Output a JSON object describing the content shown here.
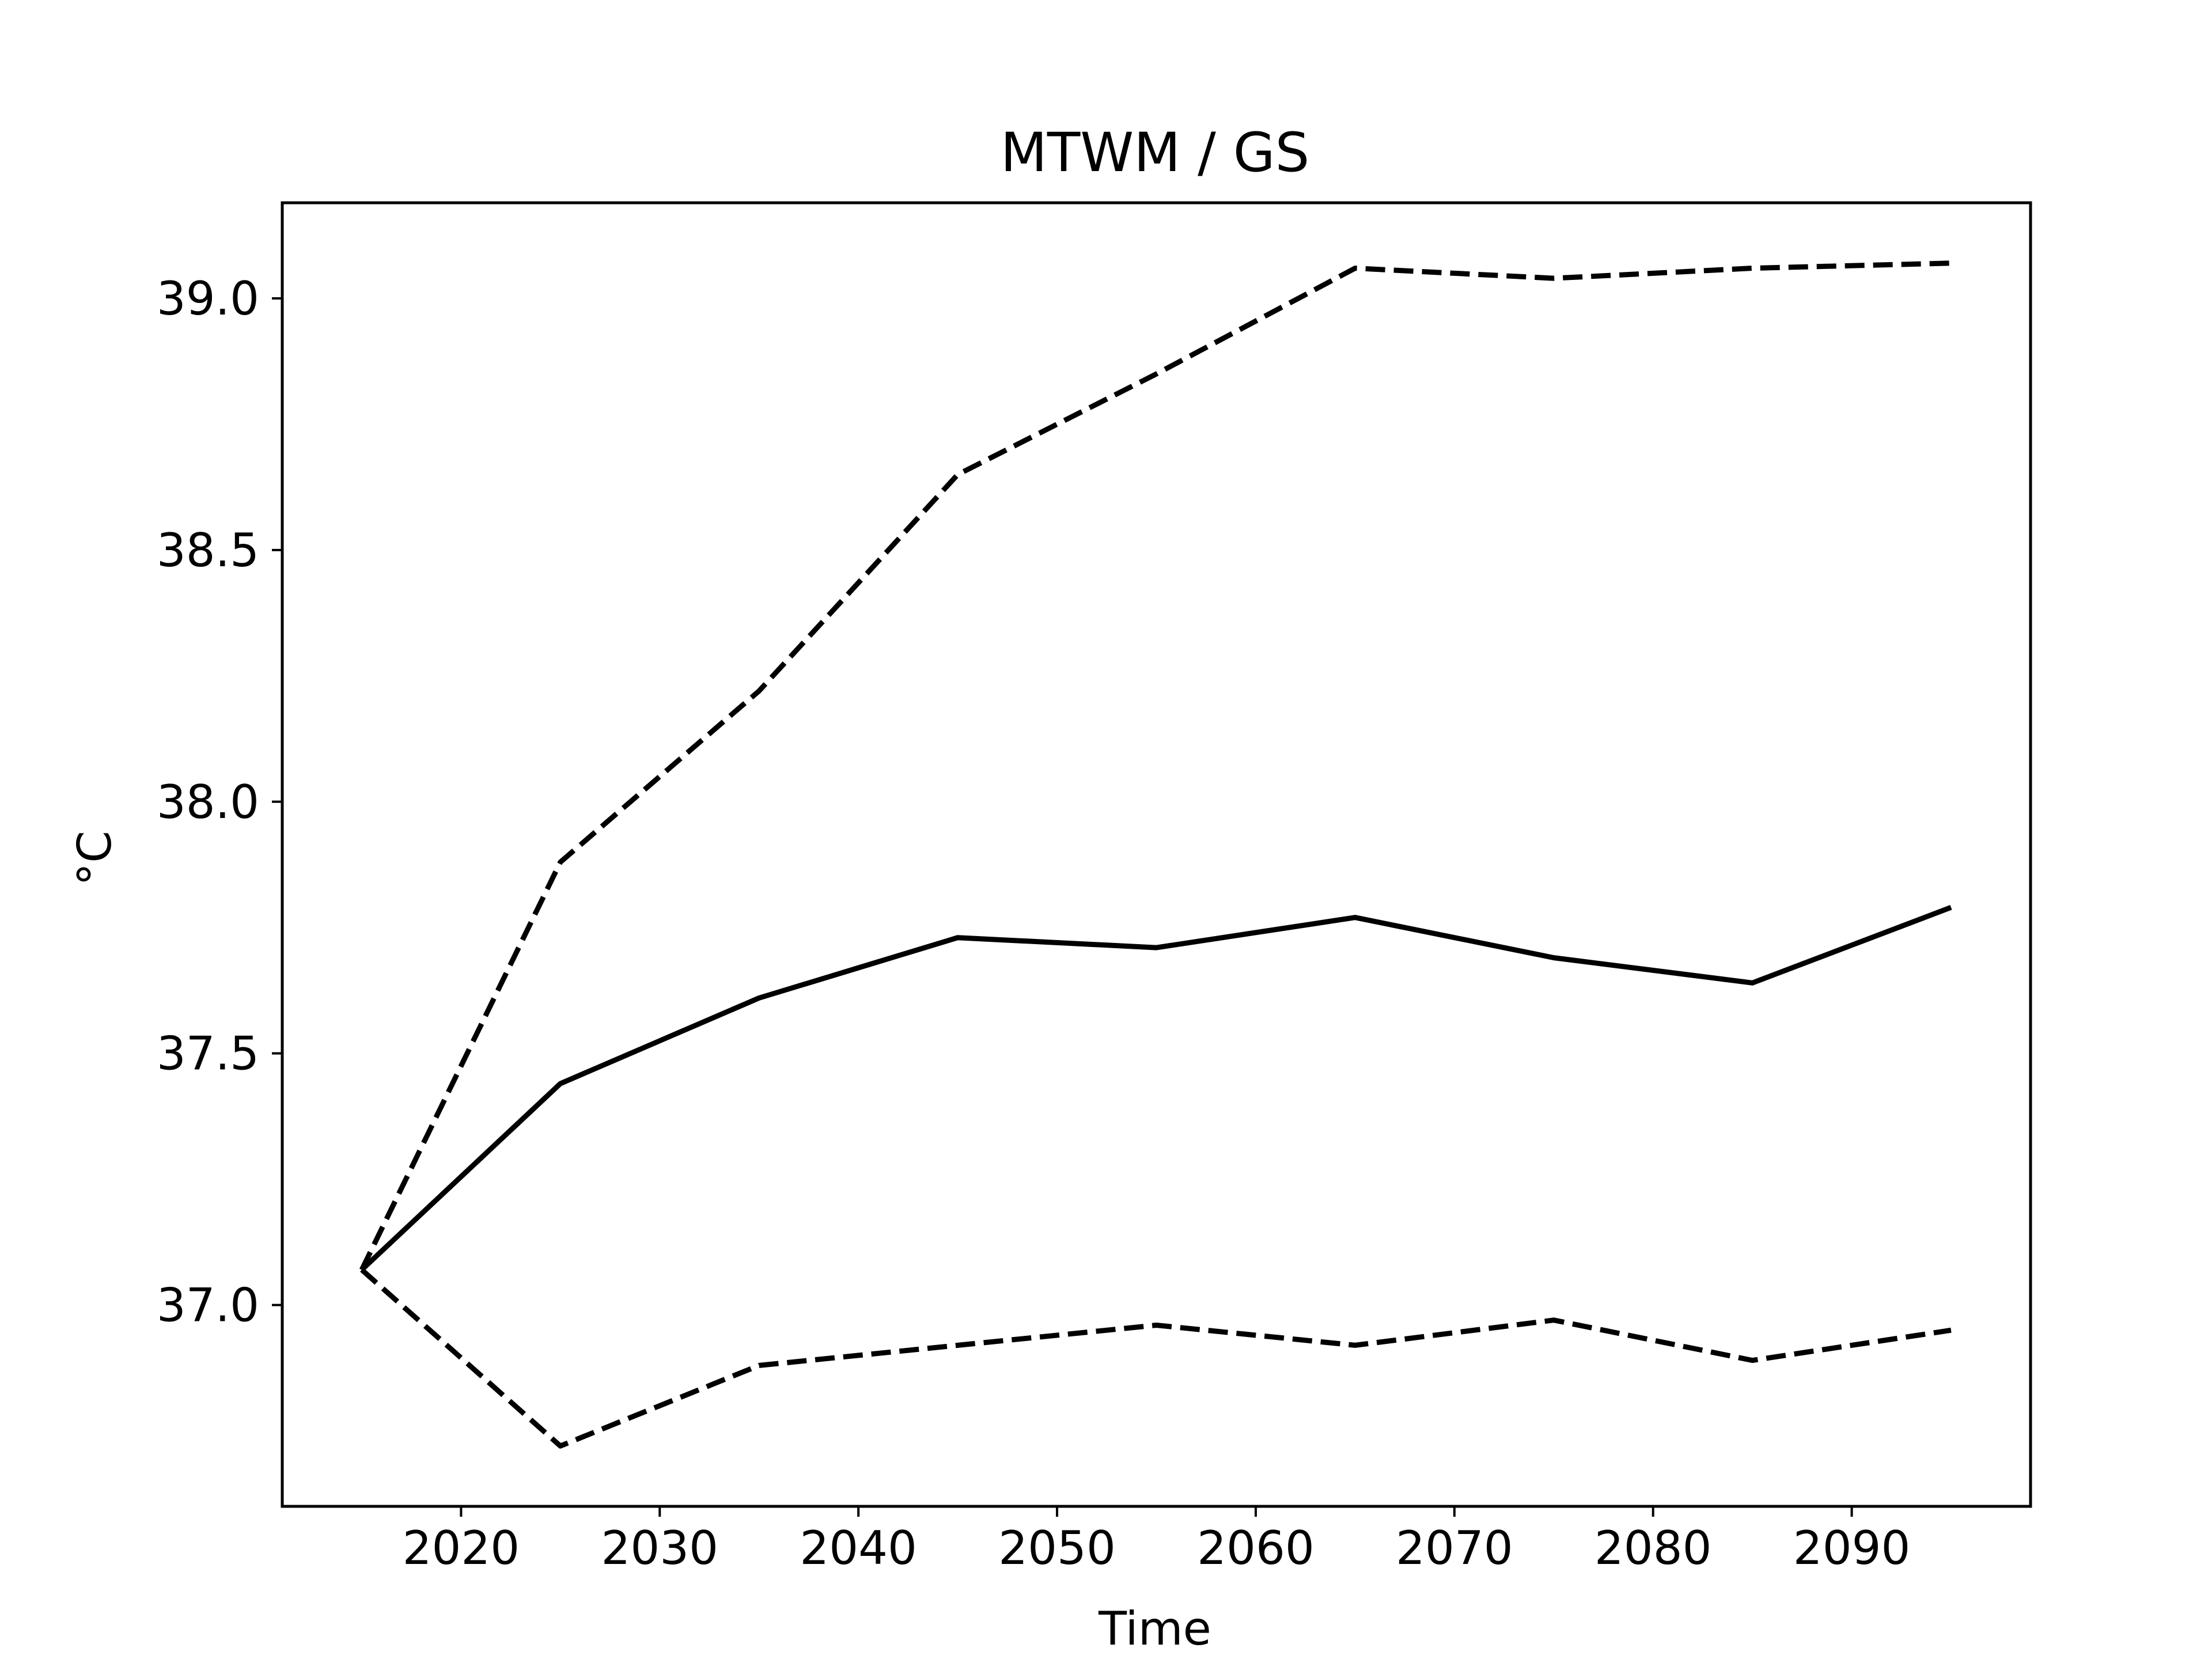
{
  "chart_data": {
    "type": "line",
    "title": "MTWM / GS",
    "xlabel": "Time",
    "ylabel": "°C",
    "x": [
      2015,
      2025,
      2035,
      2045,
      2055,
      2065,
      2075,
      2085,
      2095
    ],
    "xlim": [
      2011,
      2099
    ],
    "ylim": [
      36.6,
      39.19
    ],
    "xticks": [
      2020,
      2030,
      2040,
      2050,
      2060,
      2070,
      2080,
      2090
    ],
    "xtick_labels": [
      "2020",
      "2030",
      "2040",
      "2050",
      "2060",
      "2070",
      "2080",
      "2090"
    ],
    "yticks": [
      37.0,
      37.5,
      38.0,
      38.5,
      39.0
    ],
    "ytick_labels": [
      "37.0",
      "37.5",
      "38.0",
      "38.5",
      "39.0"
    ],
    "grid": false,
    "series": [
      {
        "style": "dashed",
        "color": "#000000",
        "values": [
          37.07,
          37.88,
          38.22,
          38.65,
          38.85,
          39.06,
          39.04,
          39.06,
          39.07
        ]
      },
      {
        "style": "solid",
        "color": "#000000",
        "values": [
          37.07,
          37.44,
          37.61,
          37.73,
          37.71,
          37.77,
          37.69,
          37.64,
          37.79
        ]
      },
      {
        "style": "dashed",
        "color": "#000000",
        "values": [
          37.07,
          36.72,
          36.88,
          36.92,
          36.96,
          36.92,
          36.97,
          36.89,
          36.95
        ]
      }
    ]
  }
}
